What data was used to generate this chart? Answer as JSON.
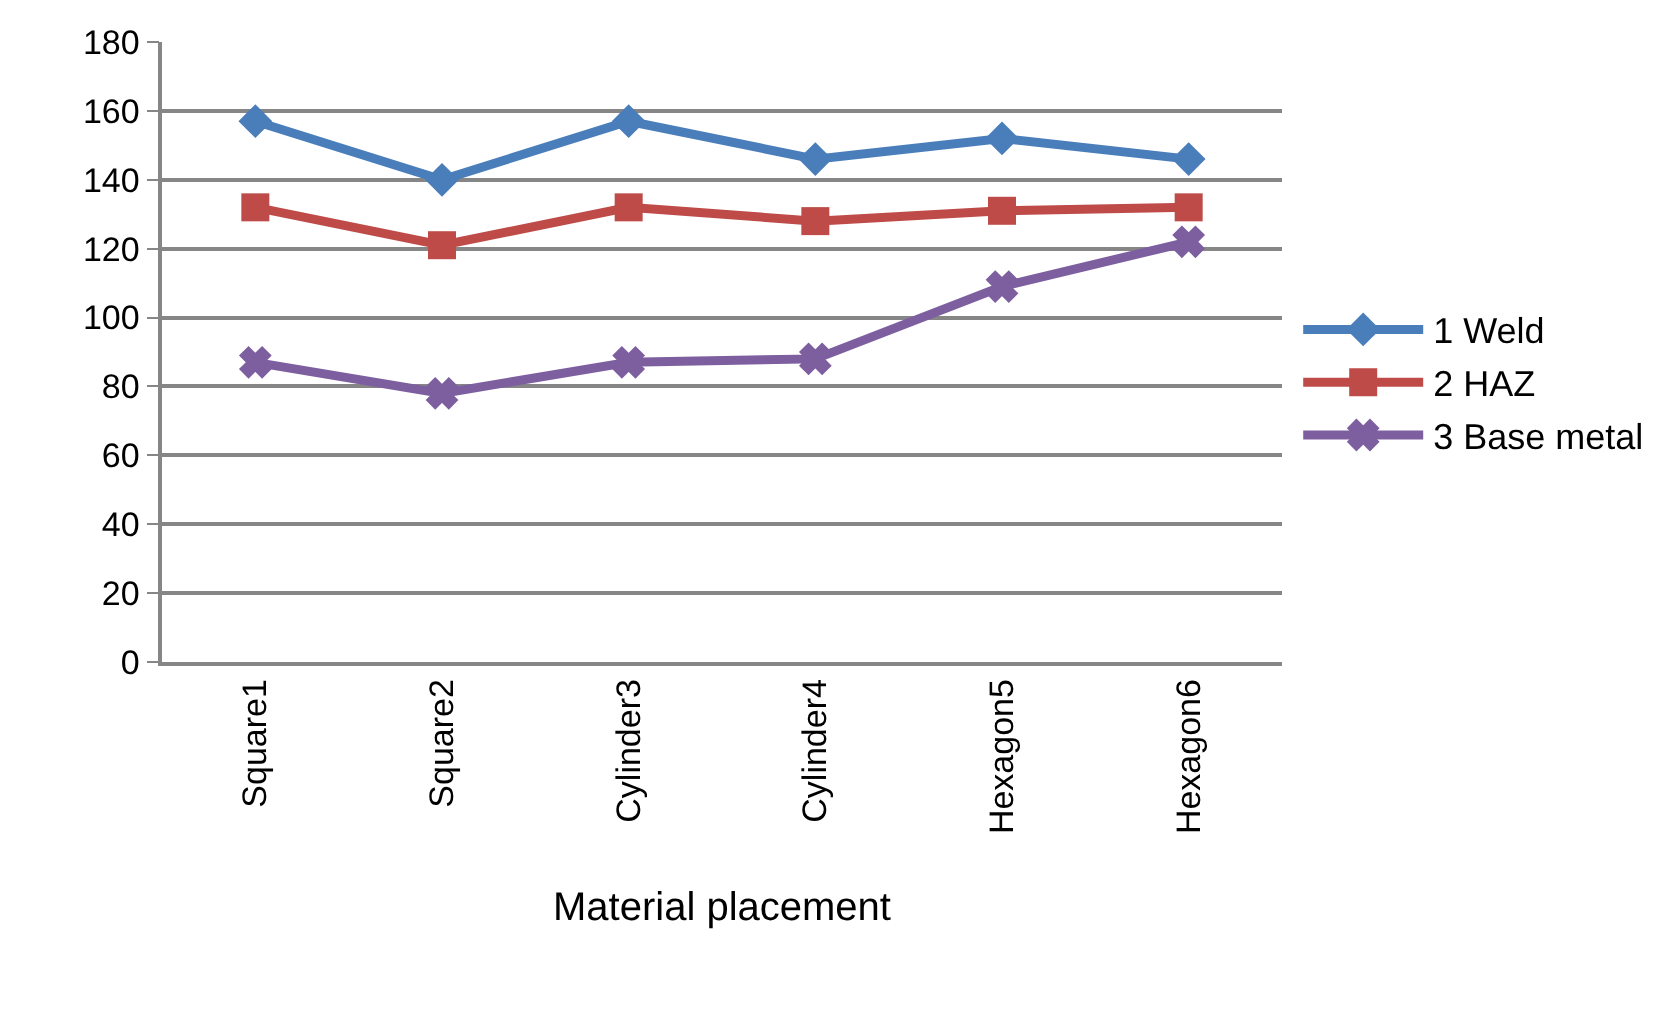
{
  "chart_data": {
    "type": "line",
    "xlabel": "Material placement",
    "categories": [
      "Square1",
      "Square2",
      "Cylinder3",
      "Cylinder4",
      "Hexagon5",
      "Hexagon6"
    ],
    "series": [
      {
        "name": "1 Weld",
        "color": "#4a7ebb",
        "marker": "diamond",
        "values": [
          157,
          140,
          157,
          146,
          152,
          146
        ]
      },
      {
        "name": "2 HAZ",
        "color": "#be4b48",
        "marker": "square",
        "values": [
          132,
          121,
          132,
          128,
          131,
          132
        ]
      },
      {
        "name": "3 Base metal",
        "color": "#7d5fa0",
        "marker": "cross",
        "values": [
          87,
          78,
          87,
          88,
          109,
          122
        ]
      }
    ],
    "ylim": [
      0,
      180
    ],
    "yticks": [
      0,
      20,
      40,
      60,
      80,
      100,
      120,
      140,
      160,
      180
    ],
    "grid": "y",
    "legend": "right",
    "line_style": "solid"
  }
}
